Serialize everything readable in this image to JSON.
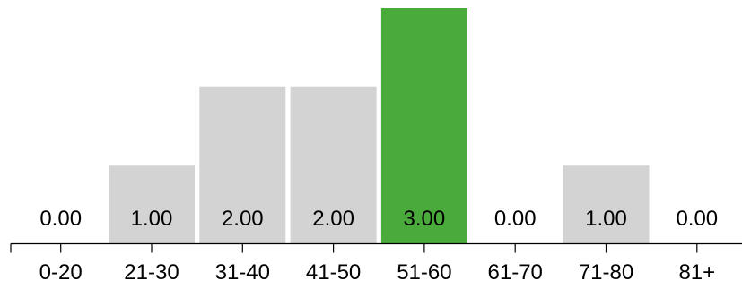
{
  "chart_data": {
    "type": "bar",
    "categories": [
      "0-20",
      "21-30",
      "31-40",
      "41-50",
      "51-60",
      "61-70",
      "71-80",
      "81+"
    ],
    "values": [
      0,
      1,
      2,
      2,
      3,
      0,
      1,
      0
    ],
    "data_labels": [
      "0.00",
      "1.00",
      "2.00",
      "2.00",
      "3.00",
      "0.00",
      "1.00",
      "0.00"
    ],
    "highlight_category": "51-60",
    "ylim": [
      0,
      3
    ],
    "grid": false,
    "colors": {
      "bar": "#d3d3d3",
      "highlight": "#4aaa3c",
      "axis": "#000000",
      "text": "#000000"
    }
  }
}
